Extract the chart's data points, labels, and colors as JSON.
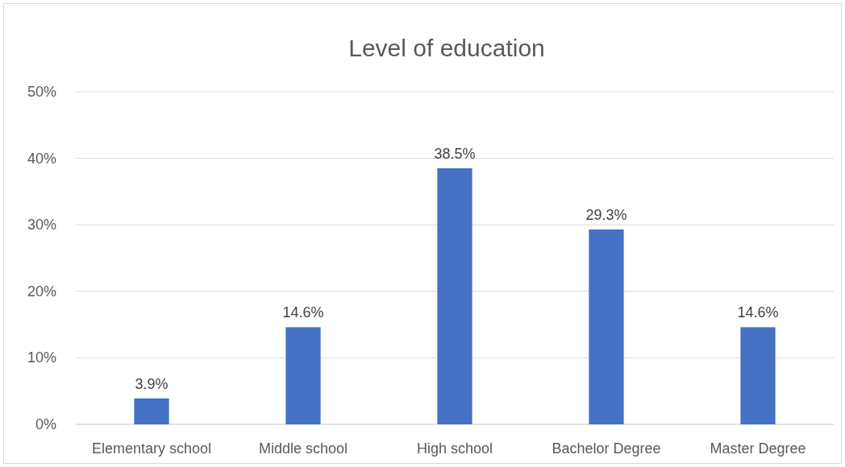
{
  "chart_data": {
    "type": "bar",
    "title": "Level of education",
    "categories": [
      "Elementary school",
      "Middle school",
      "High school",
      "Bachelor Degree",
      "Master Degree"
    ],
    "values": [
      3.9,
      14.6,
      38.5,
      29.3,
      14.6
    ],
    "value_labels": [
      "3.9%",
      "14.6%",
      "38.5%",
      "29.3%",
      "14.6%"
    ],
    "color": "#4472c4",
    "ylim": [
      0,
      50
    ],
    "yticks": [
      {
        "value": 0,
        "label": "0%"
      },
      {
        "value": 10,
        "label": "10%"
      },
      {
        "value": 20,
        "label": "20%"
      },
      {
        "value": 30,
        "label": "30%"
      },
      {
        "value": 40,
        "label": "40%"
      },
      {
        "value": 50,
        "label": "50%"
      }
    ],
    "grid": "y"
  }
}
